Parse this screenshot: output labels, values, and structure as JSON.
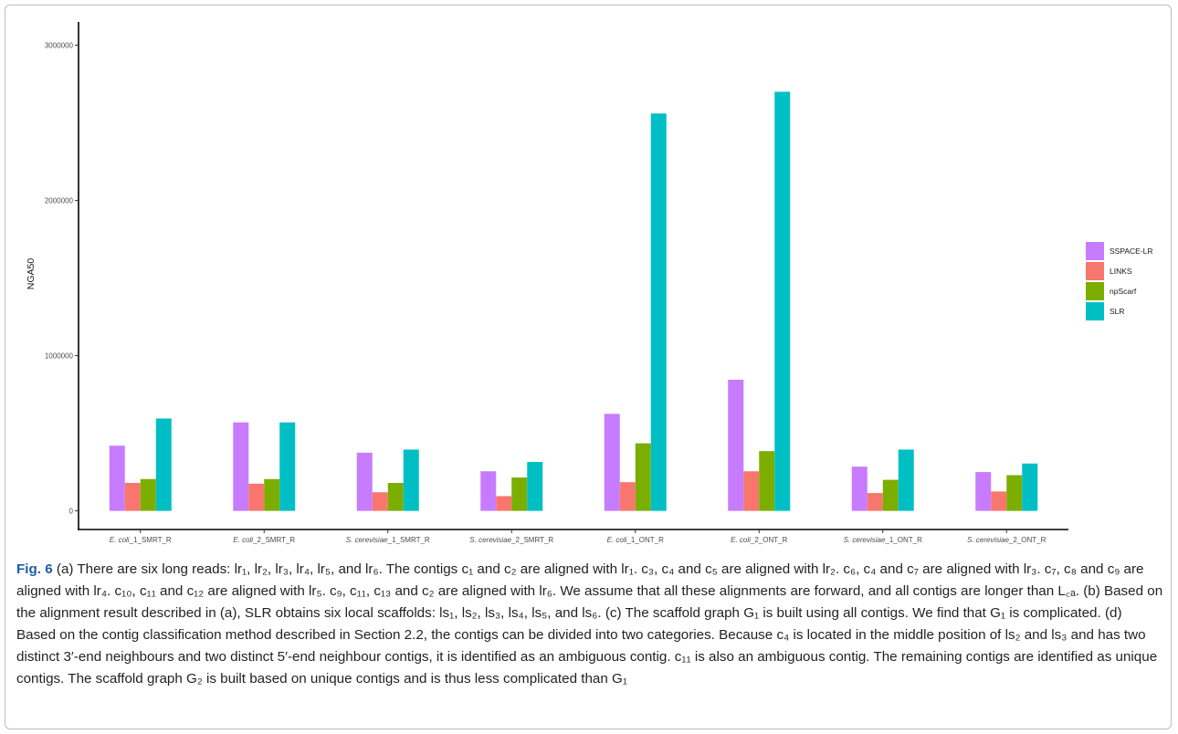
{
  "chart_data": {
    "type": "bar",
    "ylabel": "NGA50",
    "xlabel": "",
    "ylim": [
      -120000,
      3150000
    ],
    "yticks": [
      0,
      1000000,
      2000000,
      3000000
    ],
    "ytick_labels": [
      "0",
      "1000000",
      "2000000",
      "3000000"
    ],
    "grid": false,
    "legend_position": "right",
    "categories": [
      "E. coli_1_SMRT_R",
      "E. coli_2_SMRT_R",
      "S. cerevisiae_1_SMRT_R",
      "S. cerevisiae_2_SMRT_R",
      "E. coli_1_ONT_R",
      "E. coli_2_ONT_R",
      "S. cerevisiae_1_ONT_R",
      "S. cerevisiae_2_ONT_R"
    ],
    "series": [
      {
        "name": "SSPACE-LR",
        "color": "#c77cff",
        "values": [
          420000,
          570000,
          375000,
          255000,
          625000,
          845000,
          285000,
          250000
        ]
      },
      {
        "name": "LINKS",
        "color": "#f8766d",
        "values": [
          180000,
          175000,
          120000,
          95000,
          185000,
          255000,
          115000,
          125000
        ]
      },
      {
        "name": "npScarf",
        "color": "#7cae00",
        "values": [
          205000,
          205000,
          180000,
          215000,
          435000,
          385000,
          200000,
          230000
        ]
      },
      {
        "name": "SLR",
        "color": "#00bfc4",
        "values": [
          595000,
          570000,
          395000,
          315000,
          2560000,
          2700000,
          395000,
          305000
        ]
      }
    ]
  },
  "caption": {
    "fig_label": "Fig. 6",
    "text": " (a) There are six long reads: lr₁, lr₂, lr₃, lr₄, lr₅, and lr₆. The contigs c₁ and c₂ are aligned with lr₁. c₃, c₄ and c₅ are aligned with lr₂. c₆, c₄ and c₇ are aligned with lr₃. c₇, c₈ and c₉ are aligned with lr₄. c₁₀, c₁₁ and c₁₂ are aligned with lr₅. c₉, c₁₁, c₁₃ and c₂ are aligned with lr₆. We assume that all these alignments are forward, and all contigs are longer than L꜀ₐ. (b) Based on the alignment result described in (a), SLR obtains six local scaffolds: ls₁, ls₂, ls₃, ls₄, ls₅, and ls₆. (c) The scaffold graph G₁ is built using all contigs. We find that G₁ is complicated. (d) Based on the contig classification method described in Section 2.2, the contigs can be divided into two categories. Because c₄ is located in the middle position of ls₂ and ls₃ and has two distinct 3′-end neighbours and two distinct 5′-end neighbour contigs, it is identified as an ambiguous contig. c₁₁ is also an ambiguous contig. The remaining contigs are identified as unique contigs. The scaffold graph G₂ is built based on unique contigs and is thus less complicated than G₁"
  }
}
